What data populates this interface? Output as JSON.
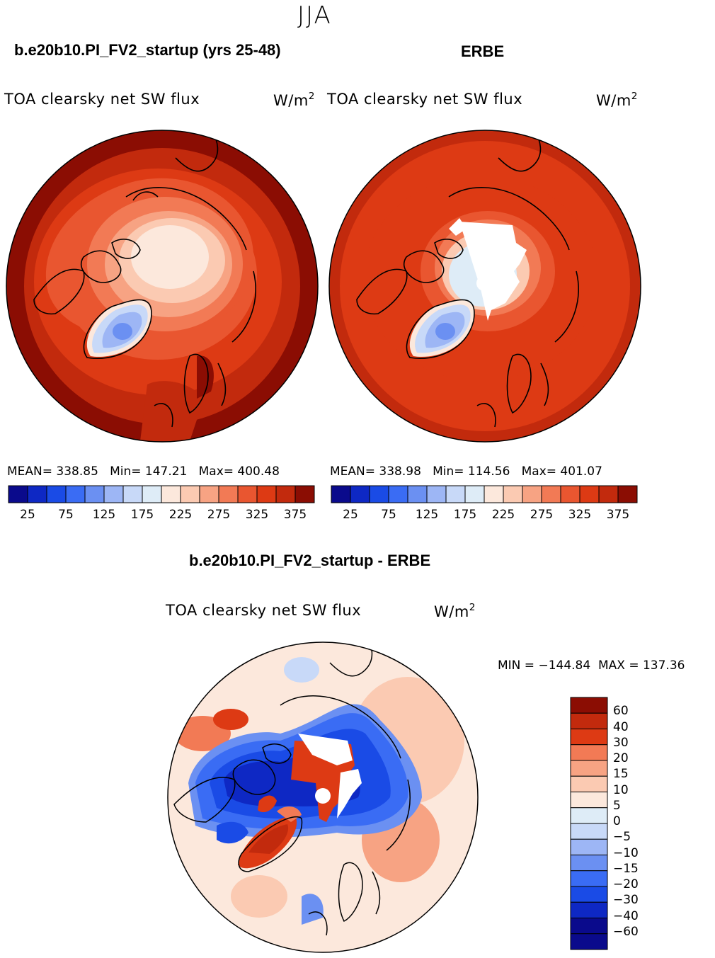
{
  "season": "JJA",
  "colors": {
    "abs_scale": [
      "#0a0a8c",
      "#0e28c4",
      "#1a4be6",
      "#3a6cf4",
      "#6b90f2",
      "#9db6f5",
      "#c8d9f8",
      "#deecf7",
      "#fce8dc",
      "#fbcab2",
      "#f7a383",
      "#f27a55",
      "#e95630",
      "#dd3a14",
      "#c22a0d",
      "#8b0d03"
    ],
    "diff_scale": [
      "#8b0d03",
      "#c22a0d",
      "#dd3a14",
      "#f27a55",
      "#f7a383",
      "#fbcab2",
      "#fce8dc",
      "#deecf7",
      "#c8d9f8",
      "#9db6f5",
      "#6b90f2",
      "#3a6cf4",
      "#1a4be6",
      "#0e28c4",
      "#0a0a8c"
    ],
    "land_outline": "#000000"
  },
  "panels": [
    {
      "case_title": "b.e20b10.PI_FV2_startup (yrs 25-48)",
      "field": "TOA clearsky net SW flux",
      "units_base": "W/m",
      "units_exp": "2",
      "stats": "MEAN= 338.85   Min= 147.21   Max= 400.48"
    },
    {
      "case_title": "ERBE",
      "field": "TOA clearsky net SW flux",
      "units_base": "W/m",
      "units_exp": "2",
      "stats": "MEAN= 338.98   Min= 114.56   Max= 401.07"
    }
  ],
  "abs_ticks": [
    "25",
    "75",
    "125",
    "175",
    "225",
    "275",
    "325",
    "375"
  ],
  "diff": {
    "title": "b.e20b10.PI_FV2_startup - ERBE",
    "field": "TOA clearsky net SW flux",
    "units_base": "W/m",
    "units_exp": "2",
    "stats": "MIN = −144.84  MAX = 137.36",
    "ticks": [
      "60",
      "40",
      "30",
      "20",
      "15",
      "10",
      "5",
      "0",
      "−5",
      "−10",
      "−15",
      "−20",
      "−30",
      "−40",
      "−60"
    ]
  }
}
